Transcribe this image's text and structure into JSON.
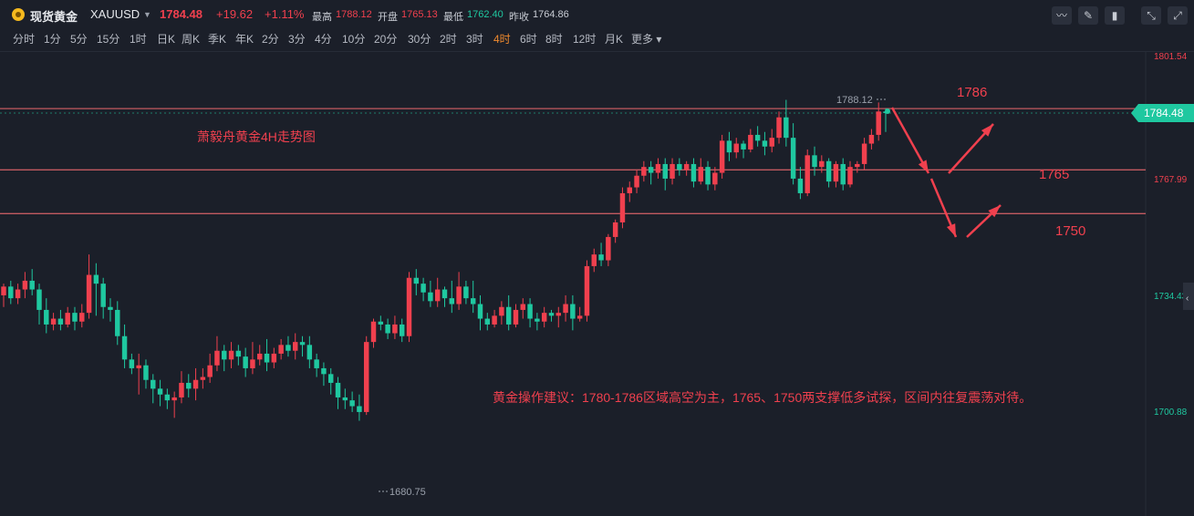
{
  "header": {
    "name": "现货黄金",
    "symbol": "XAUUSD",
    "price": "1784.48",
    "change": "+19.62",
    "change_pct": "+1.11%",
    "high_label": "最高",
    "high": "1788.12",
    "open_label": "开盘",
    "open": "1765.13",
    "low_label": "最低",
    "low": "1762.40",
    "prev_label": "昨收",
    "prev": "1764.86",
    "up_color": "#f0404e",
    "down_color": "#1fc8a0"
  },
  "timeframes": [
    "分时",
    "1分",
    "5分",
    "15分",
    "1时",
    "日K",
    "周K",
    "季K",
    "年K",
    "2分",
    "3分",
    "4分",
    "10分",
    "20分",
    "30分",
    "2时",
    "3时",
    "4时",
    "6时",
    "8时",
    "12时",
    "月K",
    "更多"
  ],
  "active_timeframe": "4时",
  "toolbar_icons": [
    "line-chart-icon",
    "draw-pen-icon",
    "candlestick-icon",
    "collapse-icon",
    "fullscreen-icon"
  ],
  "chart_data": {
    "type": "candlestick",
    "annotations": {
      "title": "萧毅舟黄金4H走势图",
      "advice": "黄金操作建议：1780-1786区域高空为主，1765、1750两支撑低多试探，区间内往复震荡对待。",
      "levels": [
        {
          "label": "1786",
          "value": 1786
        },
        {
          "label": "1765",
          "value": 1765
        },
        {
          "label": "1750",
          "value": 1750
        }
      ],
      "high_marker": "1788.12",
      "low_marker": "1680.75"
    },
    "price_axis": {
      "ticks": [
        "1801.54",
        "1767.99",
        "1734.43",
        "1700.88"
      ],
      "current": "1784.48"
    },
    "candles": [
      [
        1722,
        1725,
        1718,
        1726
      ],
      [
        1725,
        1721,
        1719,
        1727
      ],
      [
        1721,
        1724,
        1719,
        1726
      ],
      [
        1724,
        1727,
        1721,
        1730
      ],
      [
        1727,
        1724,
        1722,
        1731
      ],
      [
        1724,
        1717,
        1712,
        1726
      ],
      [
        1717,
        1712,
        1709,
        1721
      ],
      [
        1712,
        1714,
        1710,
        1716
      ],
      [
        1714,
        1712,
        1710,
        1717
      ],
      [
        1712,
        1716,
        1711,
        1718
      ],
      [
        1716,
        1713,
        1710,
        1718
      ],
      [
        1713,
        1716,
        1711,
        1719
      ],
      [
        1716,
        1729,
        1714,
        1736
      ],
      [
        1729,
        1726,
        1715,
        1733
      ],
      [
        1726,
        1718,
        1714,
        1728
      ],
      [
        1718,
        1717,
        1713,
        1721
      ],
      [
        1717,
        1708,
        1705,
        1720
      ],
      [
        1708,
        1700,
        1697,
        1712
      ],
      [
        1700,
        1697,
        1695,
        1702
      ],
      [
        1697,
        1698,
        1688,
        1702
      ],
      [
        1698,
        1693,
        1690,
        1700
      ],
      [
        1693,
        1690,
        1685,
        1695
      ],
      [
        1690,
        1688,
        1684,
        1693
      ],
      [
        1688,
        1686,
        1683,
        1690
      ],
      [
        1686,
        1687,
        1680,
        1689
      ],
      [
        1687,
        1692,
        1685,
        1696
      ],
      [
        1692,
        1690,
        1687,
        1695
      ],
      [
        1690,
        1693,
        1686,
        1697
      ],
      [
        1693,
        1694,
        1690,
        1697
      ],
      [
        1694,
        1698,
        1692,
        1702
      ],
      [
        1698,
        1703,
        1696,
        1708
      ],
      [
        1703,
        1700,
        1696,
        1705
      ],
      [
        1700,
        1703,
        1697,
        1706
      ],
      [
        1703,
        1701,
        1698,
        1705
      ],
      [
        1701,
        1697,
        1694,
        1704
      ],
      [
        1697,
        1700,
        1695,
        1706
      ],
      [
        1700,
        1702,
        1698,
        1705
      ],
      [
        1702,
        1699,
        1696,
        1707
      ],
      [
        1699,
        1702,
        1697,
        1704
      ],
      [
        1702,
        1705,
        1700,
        1707
      ],
      [
        1705,
        1703,
        1701,
        1708
      ],
      [
        1703,
        1706,
        1700,
        1709
      ],
      [
        1706,
        1705,
        1701,
        1708
      ],
      [
        1705,
        1700,
        1697,
        1708
      ],
      [
        1700,
        1697,
        1694,
        1702
      ],
      [
        1697,
        1695,
        1691,
        1699
      ],
      [
        1695,
        1692,
        1688,
        1697
      ],
      [
        1692,
        1687,
        1683,
        1694
      ],
      [
        1687,
        1686,
        1683,
        1690
      ],
      [
        1686,
        1684,
        1682,
        1689
      ],
      [
        1684,
        1682,
        1679,
        1688
      ],
      [
        1682,
        1706,
        1681,
        1708
      ],
      [
        1706,
        1713,
        1704,
        1714
      ],
      [
        1713,
        1712,
        1710,
        1715
      ],
      [
        1712,
        1709,
        1707,
        1714
      ],
      [
        1709,
        1712,
        1707,
        1715
      ],
      [
        1712,
        1708,
        1706,
        1714
      ],
      [
        1708,
        1728,
        1706,
        1730
      ],
      [
        1728,
        1726,
        1722,
        1731
      ],
      [
        1726,
        1723,
        1720,
        1728
      ],
      [
        1723,
        1720,
        1718,
        1727
      ],
      [
        1720,
        1724,
        1718,
        1728
      ],
      [
        1724,
        1721,
        1718,
        1725
      ],
      [
        1721,
        1719,
        1716,
        1727
      ],
      [
        1719,
        1725,
        1717,
        1730
      ],
      [
        1725,
        1721,
        1719,
        1727
      ],
      [
        1721,
        1719,
        1716,
        1727
      ],
      [
        1719,
        1714,
        1710,
        1722
      ],
      [
        1714,
        1712,
        1710,
        1716
      ],
      [
        1712,
        1715,
        1711,
        1717
      ],
      [
        1715,
        1718,
        1712,
        1720
      ],
      [
        1718,
        1712,
        1710,
        1722
      ],
      [
        1712,
        1717,
        1711,
        1719
      ],
      [
        1717,
        1719,
        1714,
        1721
      ],
      [
        1719,
        1714,
        1711,
        1721
      ],
      [
        1714,
        1713,
        1710,
        1716
      ],
      [
        1713,
        1716,
        1711,
        1718
      ],
      [
        1716,
        1715,
        1713,
        1717
      ],
      [
        1715,
        1716,
        1711,
        1718
      ],
      [
        1716,
        1719,
        1713,
        1722
      ],
      [
        1719,
        1714,
        1710,
        1722
      ],
      [
        1714,
        1715,
        1713,
        1718
      ],
      [
        1715,
        1732,
        1713,
        1734
      ],
      [
        1732,
        1736,
        1730,
        1738
      ],
      [
        1736,
        1734,
        1732,
        1740
      ],
      [
        1734,
        1742,
        1732,
        1743
      ],
      [
        1742,
        1747,
        1740,
        1748
      ],
      [
        1747,
        1757,
        1745,
        1759
      ],
      [
        1757,
        1759,
        1754,
        1761
      ],
      [
        1759,
        1763,
        1757,
        1765
      ],
      [
        1763,
        1766,
        1761,
        1768
      ],
      [
        1766,
        1764,
        1760,
        1768
      ],
      [
        1764,
        1767,
        1762,
        1769
      ],
      [
        1767,
        1762,
        1758,
        1769
      ],
      [
        1762,
        1767,
        1760,
        1769
      ],
      [
        1767,
        1765,
        1763,
        1769
      ],
      [
        1765,
        1767,
        1763,
        1768
      ],
      [
        1767,
        1761,
        1759,
        1769
      ],
      [
        1761,
        1766,
        1760,
        1769
      ],
      [
        1766,
        1760,
        1758,
        1768
      ],
      [
        1760,
        1764,
        1758,
        1766
      ],
      [
        1764,
        1775,
        1762,
        1777
      ],
      [
        1775,
        1771,
        1768,
        1778
      ],
      [
        1771,
        1774,
        1769,
        1776
      ],
      [
        1774,
        1772,
        1769,
        1775
      ],
      [
        1772,
        1777,
        1771,
        1779
      ],
      [
        1777,
        1775,
        1773,
        1780
      ],
      [
        1775,
        1773,
        1770,
        1778
      ],
      [
        1773,
        1776,
        1771,
        1779
      ],
      [
        1776,
        1783,
        1774,
        1785
      ],
      [
        1783,
        1776,
        1773,
        1789
      ],
      [
        1776,
        1762,
        1760,
        1781
      ],
      [
        1762,
        1757,
        1755,
        1766
      ],
      [
        1757,
        1770,
        1756,
        1772
      ],
      [
        1770,
        1766,
        1763,
        1773
      ],
      [
        1766,
        1768,
        1764,
        1770
      ],
      [
        1768,
        1761,
        1759,
        1769
      ],
      [
        1761,
        1767,
        1759,
        1768
      ],
      [
        1767,
        1760,
        1758,
        1769
      ],
      [
        1760,
        1766,
        1759,
        1768
      ],
      [
        1766,
        1767,
        1764,
        1768
      ],
      [
        1767,
        1774,
        1765,
        1776
      ],
      [
        1774,
        1777,
        1772,
        1779
      ],
      [
        1777,
        1785,
        1775,
        1788.12
      ],
      [
        1785,
        1784.48,
        1778,
        1786
      ]
    ]
  }
}
